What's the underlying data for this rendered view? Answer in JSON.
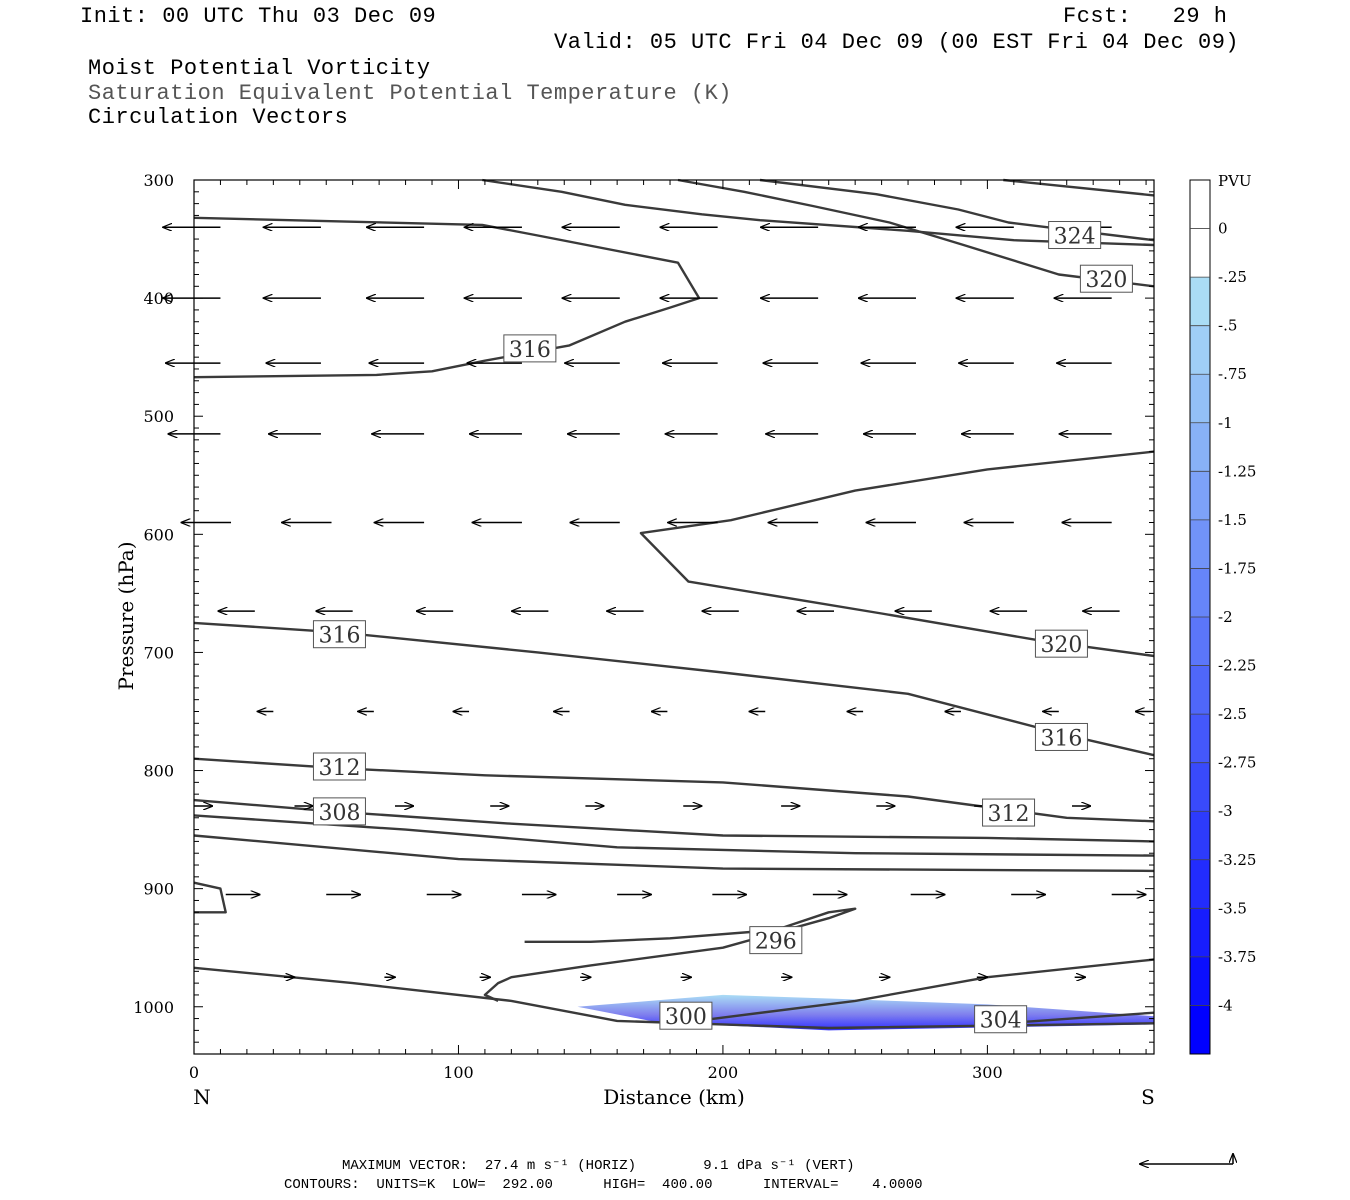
{
  "header": {
    "init": "Init: 00 UTC Thu 03 Dec 09",
    "fcst": "Fcst:   29 h",
    "valid": "Valid: 05 UTC Fri 04 Dec 09 (00 EST Fri 04 Dec 09)",
    "line1": "Moist Potential Vorticity",
    "line2": "Saturation Equivalent Potential Temperature (K)",
    "line3": "Circulation Vectors"
  },
  "footer": {
    "max_vector": "MAXIMUM VECTOR:  27.4 m s⁻¹ (HORIZ)        9.1 dPa s⁻¹ (VERT)",
    "contours": "CONTOURS:  UNITS=K  LOW=  292.00      HIGH=  400.00      INTERVAL=    4.0000"
  },
  "colors": {
    "contour": "#3a3a3a",
    "arrow": "#000000",
    "pv_min": "#0000ff",
    "pv_max": "#aaddf5"
  },
  "chart_data": {
    "type": "contour",
    "xlabel": "Distance (km)",
    "ylabel": "Pressure (hPa)",
    "xlim": [
      0,
      363
    ],
    "ylim": [
      300,
      1040
    ],
    "x_ticks": [
      "0",
      "100",
      "200",
      "300"
    ],
    "y_ticks": [
      "300",
      "400",
      "500",
      "600",
      "700",
      "800",
      "900",
      "1000"
    ],
    "endpoint_labels": {
      "left": "N",
      "right": "S"
    },
    "colorbar": {
      "unit": "PVU",
      "labels": [
        "0",
        "-.25",
        "-.5",
        "-.75",
        "-1",
        "-1.25",
        "-1.5",
        "-1.75",
        "-2",
        "-2.25",
        "-2.5",
        "-2.75",
        "-3",
        "-3.25",
        "-3.5",
        "-3.75",
        "-4"
      ]
    },
    "contour_labels": [
      {
        "text": "324",
        "x": 333,
        "p": 347
      },
      {
        "text": "320",
        "x": 345,
        "p": 384
      },
      {
        "text": "316",
        "x": 127,
        "p": 443
      },
      {
        "text": "316",
        "x": 55,
        "p": 685
      },
      {
        "text": "320",
        "x": 328,
        "p": 693
      },
      {
        "text": "316",
        "x": 328,
        "p": 772
      },
      {
        "text": "312",
        "x": 55,
        "p": 797
      },
      {
        "text": "312",
        "x": 308,
        "p": 836
      },
      {
        "text": "308",
        "x": 55,
        "p": 835
      },
      {
        "text": "296",
        "x": 220,
        "p": 944
      },
      {
        "text": "300",
        "x": 186,
        "p": 1008
      },
      {
        "text": "304",
        "x": 305,
        "p": 1011
      }
    ],
    "contours": [
      [
        [
          0,
          332
        ],
        [
          109,
          338
        ],
        [
          130,
          347
        ],
        [
          183,
          370
        ],
        [
          191,
          400
        ],
        [
          180,
          408
        ],
        [
          163,
          420
        ],
        [
          142,
          440
        ],
        [
          110,
          453
        ],
        [
          90,
          462
        ],
        [
          69,
          465
        ],
        [
          0,
          467
        ]
      ],
      [
        [
          109,
          300
        ],
        [
          139,
          310
        ],
        [
          163,
          321
        ],
        [
          192,
          329
        ],
        [
          214,
          334
        ],
        [
          270,
          343
        ],
        [
          310,
          351
        ],
        [
          363,
          355
        ]
      ],
      [
        [
          214,
          300
        ],
        [
          258,
          312
        ],
        [
          289,
          325
        ],
        [
          308,
          336
        ],
        [
          363,
          351
        ]
      ],
      [
        [
          306,
          300
        ],
        [
          363,
          313
        ]
      ],
      [
        [
          183,
          300
        ],
        [
          208,
          310
        ],
        [
          234,
          322
        ],
        [
          263,
          336
        ],
        [
          291,
          355
        ],
        [
          327,
          380
        ],
        [
          363,
          390
        ]
      ],
      [
        [
          363,
          530
        ],
        [
          300,
          545
        ],
        [
          250,
          563
        ],
        [
          203,
          588
        ],
        [
          169,
          599
        ],
        [
          187,
          640
        ],
        [
          260,
          667
        ],
        [
          320,
          690
        ],
        [
          363,
          703
        ]
      ],
      [
        [
          0,
          675
        ],
        [
          55,
          683
        ],
        [
          130,
          700
        ],
        [
          200,
          717
        ],
        [
          270,
          735
        ],
        [
          330,
          770
        ],
        [
          363,
          787
        ]
      ],
      [
        [
          0,
          790
        ],
        [
          55,
          798
        ],
        [
          110,
          804
        ],
        [
          200,
          810
        ],
        [
          270,
          822
        ],
        [
          330,
          840
        ],
        [
          363,
          843
        ]
      ],
      [
        [
          0,
          825
        ],
        [
          55,
          835
        ],
        [
          120,
          845
        ],
        [
          200,
          855
        ],
        [
          300,
          857
        ],
        [
          363,
          860
        ]
      ],
      [
        [
          0,
          838
        ],
        [
          80,
          850
        ],
        [
          160,
          865
        ],
        [
          250,
          870
        ],
        [
          363,
          872
        ]
      ],
      [
        [
          0,
          855
        ],
        [
          100,
          875
        ],
        [
          200,
          883
        ],
        [
          363,
          885
        ]
      ],
      [
        [
          0,
          895
        ],
        [
          10,
          900
        ],
        [
          12,
          920
        ],
        [
          0,
          920
        ]
      ],
      [
        [
          115,
          995
        ],
        [
          110,
          990
        ],
        [
          115,
          980
        ],
        [
          120,
          975
        ],
        [
          150,
          965
        ],
        [
          200,
          950
        ],
        [
          240,
          925
        ],
        [
          250,
          917
        ],
        [
          240,
          920
        ],
        [
          220,
          935
        ],
        [
          180,
          942
        ],
        [
          150,
          945
        ],
        [
          125,
          945
        ]
      ],
      [
        [
          190,
          1012
        ],
        [
          250,
          995
        ],
        [
          300,
          975
        ],
        [
          363,
          960
        ]
      ],
      [
        [
          0,
          967
        ],
        [
          60,
          980
        ],
        [
          120,
          995
        ],
        [
          160,
          1012
        ],
        [
          240,
          1018
        ],
        [
          363,
          1014
        ]
      ],
      [
        [
          300,
          1015
        ],
        [
          363,
          1005
        ]
      ]
    ],
    "pv_area": [
      [
        145,
        1000
      ],
      [
        200,
        990
      ],
      [
        240,
        993
      ],
      [
        300,
        998
      ],
      [
        363,
        1008
      ],
      [
        363,
        1015
      ],
      [
        240,
        1020
      ],
      [
        175,
        1013
      ]
    ],
    "vectors": [
      {
        "p": 340,
        "xs": [
          10,
          48,
          87,
          124,
          161,
          198,
          236,
          273,
          310,
          347
        ],
        "u": -22,
        "w": 0
      },
      {
        "p": 400,
        "xs": [
          10,
          48,
          87,
          124,
          161,
          198,
          236,
          273,
          310,
          347
        ],
        "u": -22,
        "w": 0
      },
      {
        "p": 455,
        "xs": [
          10,
          48,
          87,
          124,
          161,
          198,
          236,
          273,
          310,
          347
        ],
        "u": -21,
        "w": 0
      },
      {
        "p": 515,
        "xs": [
          10,
          48,
          87,
          124,
          161,
          198,
          236,
          273,
          310,
          347
        ],
        "u": -20,
        "w": 0
      },
      {
        "p": 590,
        "xs": [
          14,
          52,
          87,
          124,
          161,
          198,
          236,
          273,
          310,
          347
        ],
        "u": -19,
        "w": 0
      },
      {
        "p": 665,
        "xs": [
          23,
          60,
          98,
          134,
          170,
          206,
          242,
          279,
          315,
          350
        ],
        "u": -14,
        "w": 0
      },
      {
        "p": 750,
        "xs": [
          30,
          68,
          104,
          142,
          179,
          216,
          253,
          290,
          327,
          362
        ],
        "u": -6,
        "w": 0
      },
      {
        "p": 830,
        "xs": [
          0,
          38,
          76,
          112,
          148,
          185,
          222,
          258,
          295,
          332
        ],
        "u": 7,
        "w": 0
      },
      {
        "p": 905,
        "xs": [
          12,
          50,
          88,
          124,
          160,
          196,
          234,
          271,
          309,
          347
        ],
        "u": 13,
        "w": 0
      },
      {
        "p": 975,
        "xs": [
          34,
          72,
          108,
          146,
          184,
          222,
          259,
          296,
          333
        ],
        "u": 4,
        "w": 0
      }
    ]
  }
}
